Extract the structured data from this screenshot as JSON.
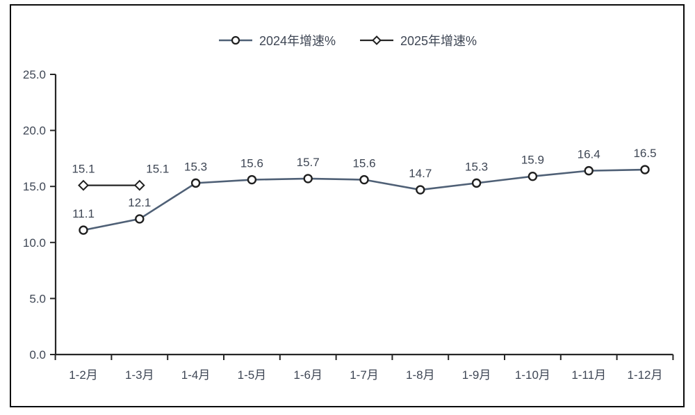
{
  "chart_data": {
    "type": "line",
    "categories": [
      "1-2月",
      "1-3月",
      "1-4月",
      "1-5月",
      "1-6月",
      "1-7月",
      "1-8月",
      "1-9月",
      "1-10月",
      "1-11月",
      "1-12月"
    ],
    "series": [
      {
        "name": "2024年增速%",
        "marker": "circle",
        "color": "#4f6076",
        "values": [
          11.1,
          12.1,
          15.3,
          15.6,
          15.7,
          15.6,
          14.7,
          15.3,
          15.9,
          16.4,
          16.5
        ]
      },
      {
        "name": "2025年增速%",
        "marker": "diamond",
        "color": "#262626",
        "values": [
          15.1,
          15.1,
          null,
          null,
          null,
          null,
          null,
          null,
          null,
          null,
          null
        ]
      }
    ],
    "title": "",
    "xlabel": "",
    "ylabel": "",
    "ylim": [
      0,
      25
    ],
    "ytick_step": 5,
    "ytick_labels": [
      "0.0",
      "5.0",
      "10.0",
      "15.0",
      "20.0",
      "25.0"
    ],
    "grid": false,
    "legend_position": "top",
    "data_labels": true
  },
  "colors": {
    "marker_fill": "#ffffff",
    "marker_stroke": "#1f1f1f",
    "axis": "#262626",
    "label_text": "#3e4654",
    "border": "#0a0a0a",
    "background": "#ffffff"
  }
}
